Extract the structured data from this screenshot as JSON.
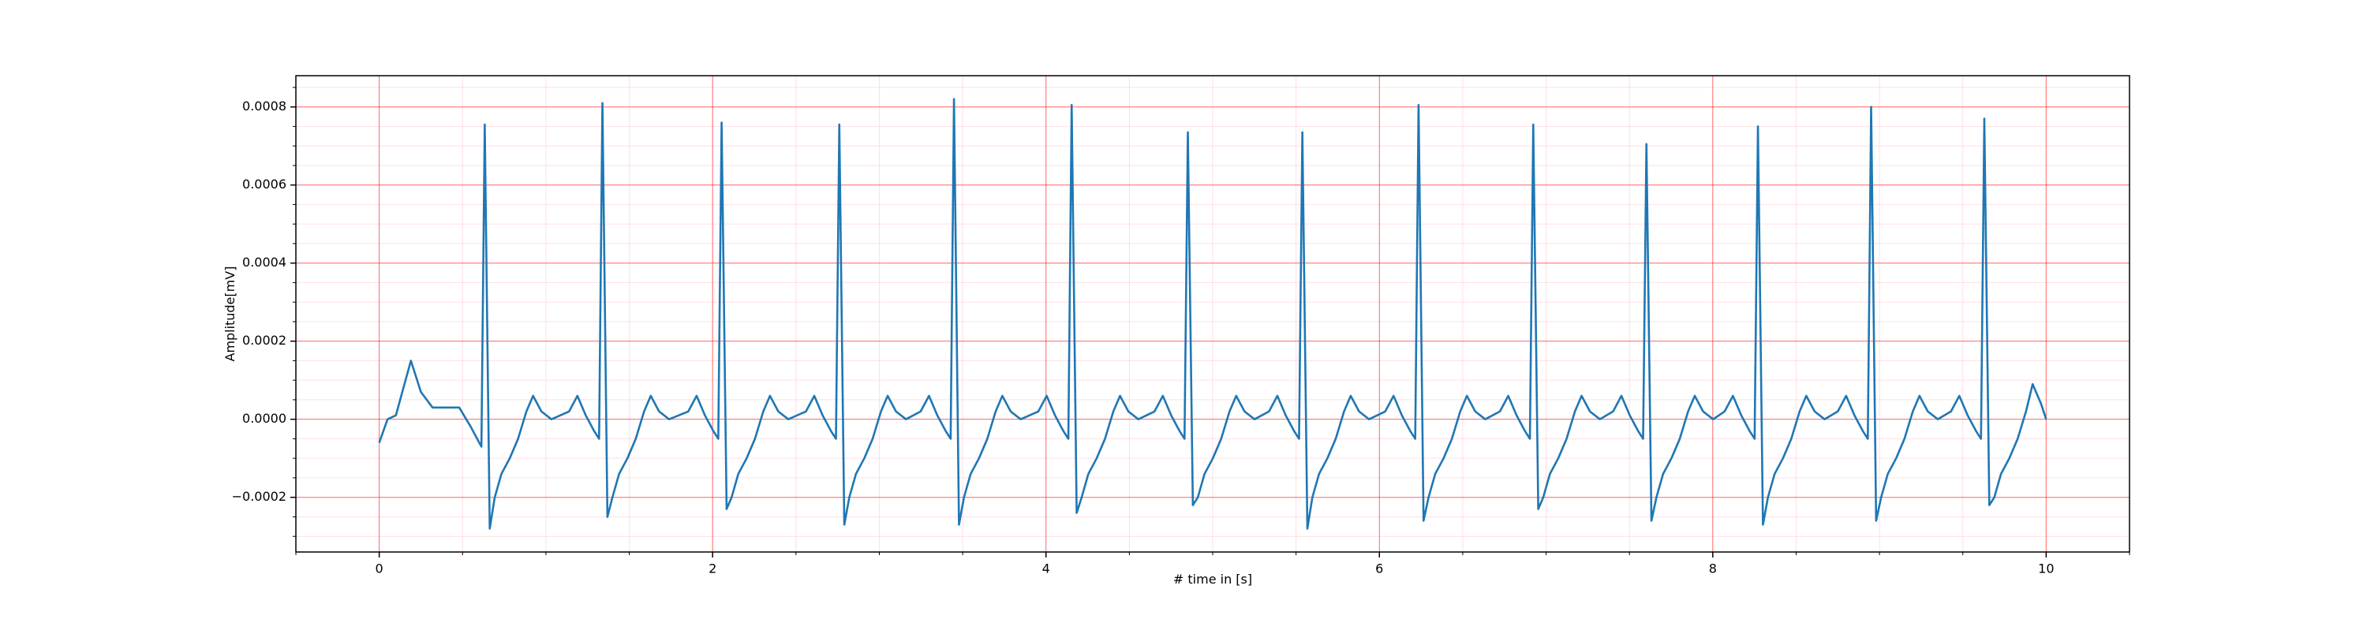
{
  "chart_data": {
    "type": "line",
    "xlabel": "# time in [s]",
    "ylabel": "Amplitude[mV]",
    "color": "#1f77b4",
    "grid": true,
    "major_grid_color": "#ff0000",
    "minor_grid_color": "#ffc0cb",
    "xlim": [
      -0.5,
      10.5
    ],
    "ylim": [
      -0.00034,
      0.00088
    ],
    "xticks": [
      0,
      2,
      4,
      6,
      8,
      10
    ],
    "yticks": [
      {
        "value": -0.0002,
        "label": "−0.0002"
      },
      {
        "value": 0,
        "label": "0.0000"
      },
      0.0002,
      0.0004,
      0.0006,
      0.0008
    ],
    "xticks_minor": [
      -0.5,
      0.5,
      1,
      1.5,
      2.5,
      3,
      3.5,
      4.5,
      5,
      5.5,
      6.5,
      7,
      7.5,
      8.5,
      9,
      9.5,
      10.5
    ],
    "yticks_minor": [
      -0.0003,
      -0.00025,
      -0.00015,
      -0.0001,
      -5e-05,
      5e-05,
      0.0001,
      0.00015,
      0.00025,
      0.0003,
      0.00035,
      0.00045,
      0.0005,
      0.00055,
      0.00065,
      0.0007,
      0.00075,
      0.00085
    ],
    "x": [
      0,
      0.05,
      0.1,
      0.19,
      0.25,
      0.32,
      0.4,
      0.48,
      0.55,
      0.6,
      0.613,
      0.633,
      0.663,
      0.693,
      0.733,
      0.783,
      0.833,
      0.883,
      0.923,
      0.973,
      1.033,
      1.139,
      1.189,
      1.239,
      1.289,
      1.319,
      1.339,
      1.369,
      1.399,
      1.439,
      1.489,
      1.539,
      1.589,
      1.629,
      1.679,
      1.739,
      1.854,
      1.904,
      1.954,
      2.004,
      2.034,
      2.054,
      2.084,
      2.114,
      2.154,
      2.204,
      2.254,
      2.304,
      2.344,
      2.394,
      2.454,
      2.56,
      2.61,
      2.66,
      2.71,
      2.74,
      2.76,
      2.79,
      2.82,
      2.86,
      2.91,
      2.96,
      3.01,
      3.05,
      3.1,
      3.16,
      3.248,
      3.298,
      3.348,
      3.398,
      3.428,
      3.448,
      3.478,
      3.508,
      3.548,
      3.598,
      3.648,
      3.698,
      3.738,
      3.788,
      3.848,
      3.954,
      4.004,
      4.054,
      4.104,
      4.134,
      4.154,
      4.184,
      4.214,
      4.254,
      4.304,
      4.354,
      4.404,
      4.444,
      4.494,
      4.554,
      4.651,
      4.701,
      4.751,
      4.801,
      4.831,
      4.851,
      4.881,
      4.911,
      4.951,
      5.001,
      5.051,
      5.101,
      5.141,
      5.191,
      5.251,
      5.338,
      5.388,
      5.438,
      5.488,
      5.518,
      5.538,
      5.568,
      5.598,
      5.638,
      5.688,
      5.738,
      5.788,
      5.828,
      5.878,
      5.938,
      6.035,
      6.085,
      6.135,
      6.185,
      6.215,
      6.235,
      6.265,
      6.295,
      6.335,
      6.385,
      6.435,
      6.485,
      6.525,
      6.575,
      6.635,
      6.723,
      6.773,
      6.823,
      6.873,
      6.903,
      6.923,
      6.953,
      6.983,
      7.023,
      7.073,
      7.123,
      7.173,
      7.213,
      7.263,
      7.323,
      7.402,
      7.452,
      7.502,
      7.552,
      7.582,
      7.602,
      7.632,
      7.662,
      7.702,
      7.752,
      7.802,
      7.852,
      7.892,
      7.942,
      8.002,
      8.071,
      8.121,
      8.171,
      8.221,
      8.251,
      8.271,
      8.301,
      8.331,
      8.371,
      8.421,
      8.471,
      8.521,
      8.561,
      8.611,
      8.671,
      8.75,
      8.8,
      8.85,
      8.9,
      8.93,
      8.95,
      8.98,
      9.01,
      9.05,
      9.1,
      9.15,
      9.2,
      9.24,
      9.29,
      9.35,
      9.429,
      9.479,
      9.529,
      9.579,
      9.609,
      9.629,
      9.659,
      9.689,
      9.729,
      9.779,
      9.829,
      9.879,
      9.919,
      9.969,
      10.0
    ],
    "values": [
      -6e-05,
      0.0,
      1e-05,
      0.00015,
      7e-05,
      3e-05,
      3e-05,
      3e-05,
      -2e-05,
      -6e-05,
      -7e-05,
      0.000755,
      -0.00028,
      -0.0002,
      -0.00014,
      -0.0001,
      -5e-05,
      2e-05,
      6e-05,
      2e-05,
      0.0,
      2e-05,
      6e-05,
      1e-05,
      -3e-05,
      -5e-05,
      0.00081,
      -0.00025,
      -0.0002,
      -0.00014,
      -0.0001,
      -5e-05,
      2e-05,
      6e-05,
      2e-05,
      0.0,
      2e-05,
      6e-05,
      1e-05,
      -3e-05,
      -5e-05,
      0.00076,
      -0.00023,
      -0.0002,
      -0.00014,
      -0.0001,
      -5e-05,
      2e-05,
      6e-05,
      2e-05,
      0.0,
      2e-05,
      6e-05,
      1e-05,
      -3e-05,
      -5e-05,
      0.000755,
      -0.00027,
      -0.0002,
      -0.00014,
      -0.0001,
      -5e-05,
      2e-05,
      6e-05,
      2e-05,
      0.0,
      2e-05,
      6e-05,
      1e-05,
      -3e-05,
      -5e-05,
      0.00082,
      -0.00027,
      -0.0002,
      -0.00014,
      -0.0001,
      -5e-05,
      2e-05,
      6e-05,
      2e-05,
      0.0,
      2e-05,
      6e-05,
      1e-05,
      -3e-05,
      -5e-05,
      0.000805,
      -0.00024,
      -0.0002,
      -0.00014,
      -0.0001,
      -5e-05,
      2e-05,
      6e-05,
      2e-05,
      0.0,
      2e-05,
      6e-05,
      1e-05,
      -3e-05,
      -5e-05,
      0.000735,
      -0.00022,
      -0.0002,
      -0.00014,
      -0.0001,
      -5e-05,
      2e-05,
      6e-05,
      2e-05,
      0.0,
      2e-05,
      6e-05,
      1e-05,
      -3e-05,
      -5e-05,
      0.000735,
      -0.00028,
      -0.0002,
      -0.00014,
      -0.0001,
      -5e-05,
      2e-05,
      6e-05,
      2e-05,
      0.0,
      2e-05,
      6e-05,
      1e-05,
      -3e-05,
      -5e-05,
      0.000805,
      -0.00026,
      -0.0002,
      -0.00014,
      -0.0001,
      -5e-05,
      2e-05,
      6e-05,
      2e-05,
      0.0,
      2e-05,
      6e-05,
      1e-05,
      -3e-05,
      -5e-05,
      0.000755,
      -0.00023,
      -0.0002,
      -0.00014,
      -0.0001,
      -5e-05,
      2e-05,
      6e-05,
      2e-05,
      0.0,
      2e-05,
      6e-05,
      1e-05,
      -3e-05,
      -5e-05,
      0.000705,
      -0.00026,
      -0.0002,
      -0.00014,
      -0.0001,
      -5e-05,
      2e-05,
      6e-05,
      2e-05,
      0.0,
      2e-05,
      6e-05,
      1e-05,
      -3e-05,
      -5e-05,
      0.00075,
      -0.00027,
      -0.0002,
      -0.00014,
      -0.0001,
      -5e-05,
      2e-05,
      6e-05,
      2e-05,
      0.0,
      2e-05,
      6e-05,
      1e-05,
      -3e-05,
      -5e-05,
      0.0008,
      -0.00026,
      -0.0002,
      -0.00014,
      -0.0001,
      -5e-05,
      2e-05,
      6e-05,
      2e-05,
      0.0,
      2e-05,
      6e-05,
      1e-05,
      -3e-05,
      -5e-05,
      0.00077,
      -0.00022,
      -0.0002,
      -0.00014,
      -0.0001,
      -5e-05,
      2e-05,
      9e-05,
      4e-05,
      0.0
    ]
  }
}
